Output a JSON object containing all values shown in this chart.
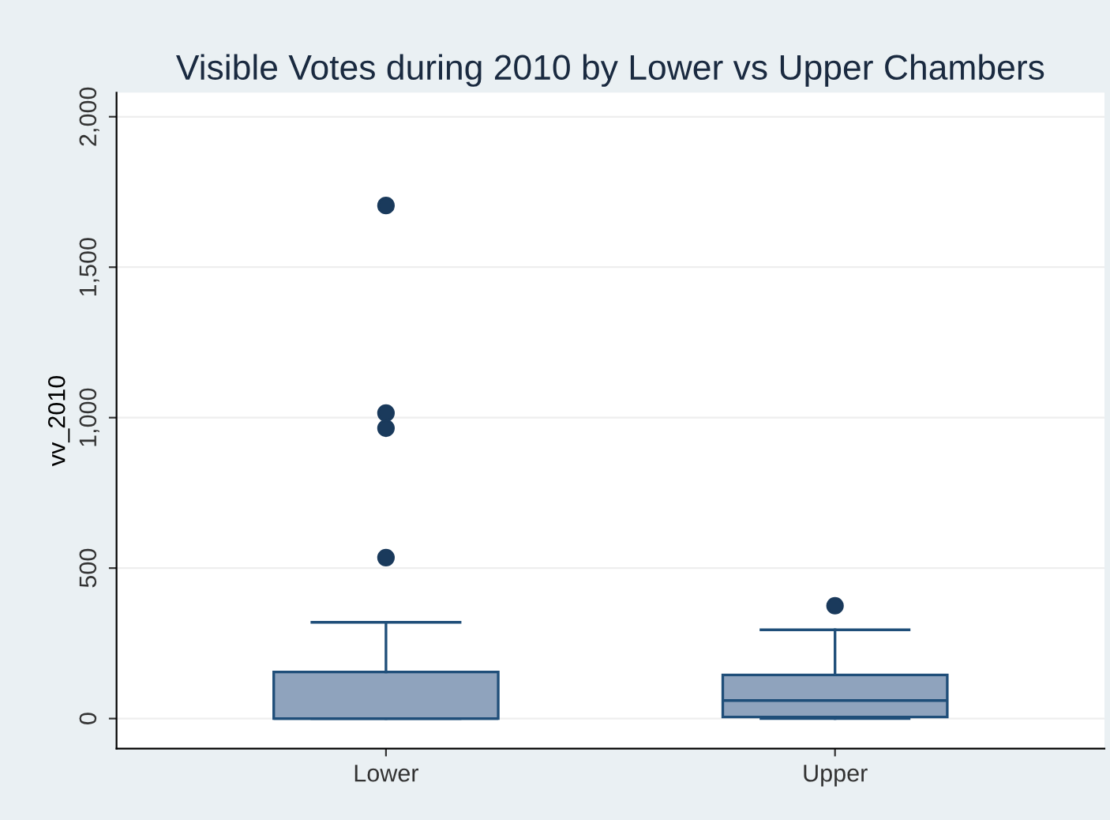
{
  "chart_data": {
    "type": "box",
    "title": "Visible Votes during 2010 by Lower vs Upper Chambers",
    "ylabel": "vv_2010",
    "categories": [
      "Lower",
      "Upper"
    ],
    "boxes": [
      {
        "low": 0,
        "q1": 0,
        "median": 0,
        "q3": 155,
        "high": 320,
        "outliers": [
          535,
          965,
          1015,
          1705
        ]
      },
      {
        "low": 0,
        "q1": 5,
        "median": 60,
        "q3": 145,
        "high": 295,
        "outliers": [
          375
        ]
      }
    ],
    "color": "#8fa3bd",
    "ylim": [
      -100,
      2080
    ],
    "yticks": [
      {
        "value": 0,
        "label": "0"
      },
      {
        "value": 500,
        "label": "500"
      },
      {
        "value": 1000,
        "label": "1,000"
      },
      {
        "value": 1500,
        "label": "1,500"
      },
      {
        "value": 2000,
        "label": "2,000"
      }
    ],
    "grid": "y"
  }
}
